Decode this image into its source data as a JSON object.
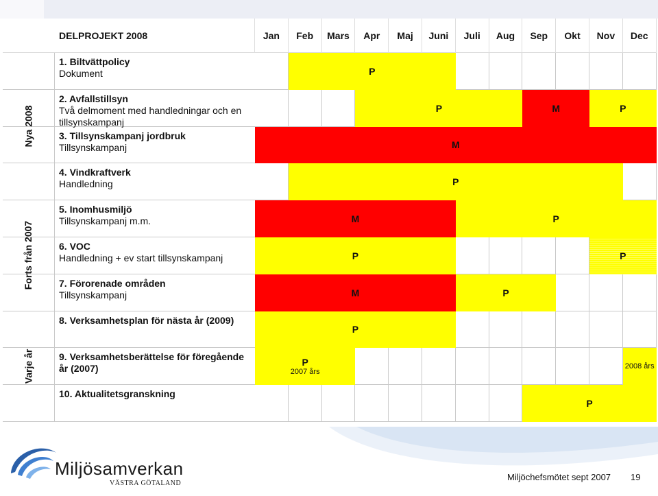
{
  "header": {
    "title": "DELPROJEKT 2008",
    "months": [
      "Jan",
      "Feb",
      "Mars",
      "Apr",
      "Maj",
      "Juni",
      "Juli",
      "Aug",
      "Sep",
      "Okt",
      "Nov",
      "Dec"
    ]
  },
  "groups": [
    {
      "label": "Nya 2008"
    },
    {
      "label": "Forts från 2007"
    },
    {
      "label": "Varje år"
    }
  ],
  "tasks": [
    {
      "name": "1. Biltvättpolicy",
      "desc": "Dokument"
    },
    {
      "name": "2. Avfallstillsyn",
      "desc": "Två delmoment med handledningar och en tillsynskampanj"
    },
    {
      "name": "3. Tillsynskampanj jordbruk",
      "desc": "Tillsynskampanj"
    },
    {
      "name": "4. Vindkraftverk",
      "desc": "Handledning"
    },
    {
      "name": "5. Inomhusmiljö",
      "desc": "Tillsynskampanj m.m."
    },
    {
      "name": "6. VOC",
      "desc": "Handledning + ev start tillsynskampanj"
    },
    {
      "name": "7. Förorenade områden",
      "desc": "Tillsynskampanj"
    },
    {
      "name": "8. Verksamhetsplan för nästa år (2009)",
      "desc": ""
    },
    {
      "name": "9. Verksamhetsberättelse för föregående år (2007)",
      "desc": ""
    },
    {
      "name": "10. Aktualitetsgranskning",
      "desc": ""
    }
  ],
  "bars": [
    {
      "row": 0,
      "start": 1,
      "end": 6,
      "color": "yellow",
      "label": "P",
      "sub": ""
    },
    {
      "row": 1,
      "start": 3,
      "end": 8,
      "color": "yellow",
      "label": "P",
      "sub": ""
    },
    {
      "row": 1,
      "start": 8,
      "end": 10,
      "color": "red",
      "label": "M",
      "sub": ""
    },
    {
      "row": 1,
      "start": 10,
      "end": 12,
      "color": "yellow",
      "label": "P",
      "sub": ""
    },
    {
      "row": 2,
      "start": 0,
      "end": 12,
      "color": "red",
      "label": "M",
      "sub": ""
    },
    {
      "row": 3,
      "start": 1,
      "end": 11,
      "color": "yellow",
      "label": "P",
      "sub": ""
    },
    {
      "row": 4,
      "start": 0,
      "end": 6,
      "color": "red",
      "label": "M",
      "sub": ""
    },
    {
      "row": 4,
      "start": 6,
      "end": 12,
      "color": "yellow",
      "label": "P",
      "sub": ""
    },
    {
      "row": 5,
      "start": 0,
      "end": 6,
      "color": "yellow",
      "label": "P",
      "sub": ""
    },
    {
      "row": 5,
      "start": 10,
      "end": 12,
      "color": "hatch",
      "label": "P",
      "sub": ""
    },
    {
      "row": 6,
      "start": 0,
      "end": 6,
      "color": "red",
      "label": "M",
      "sub": ""
    },
    {
      "row": 6,
      "start": 6,
      "end": 9,
      "color": "yellow",
      "label": "P",
      "sub": ""
    },
    {
      "row": 7,
      "start": 0,
      "end": 6,
      "color": "yellow",
      "label": "P",
      "sub": ""
    },
    {
      "row": 8,
      "start": 0,
      "end": 3,
      "color": "yellow",
      "label": "P",
      "sub": "2007 års"
    },
    {
      "row": 8,
      "start": 11,
      "end": 12,
      "color": "yellow",
      "label": "",
      "sub": "2008 års"
    },
    {
      "row": 9,
      "start": 8,
      "end": 12,
      "color": "yellow",
      "label": "P",
      "sub": ""
    }
  ],
  "colors": {
    "yellow": "#ffff00",
    "red": "#ff0000"
  },
  "footer": {
    "logo_name": "Miljösamverkan",
    "logo_region": "VÄSTRA GÖTALAND",
    "text": "Miljöchefsmötet sept 2007",
    "page": "19"
  }
}
